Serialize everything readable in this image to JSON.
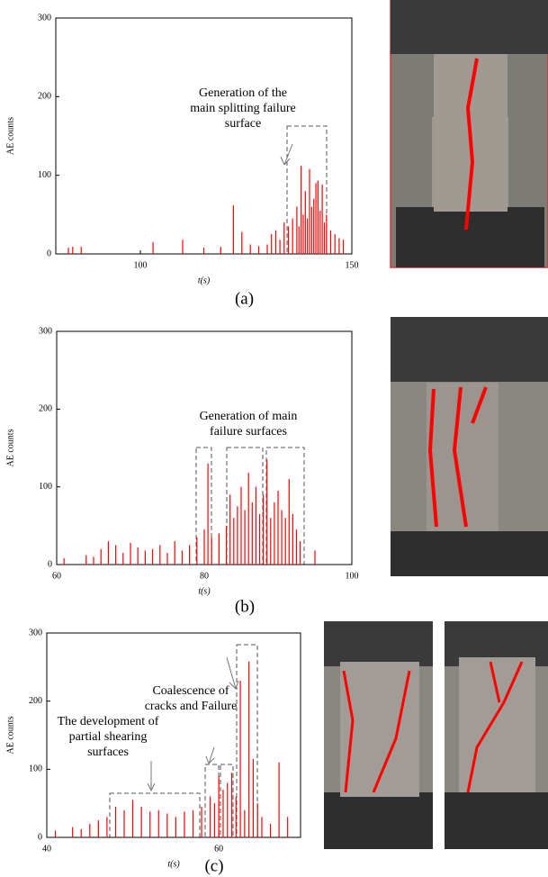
{
  "chart_data": [
    {
      "type": "bar",
      "panel": "(a)",
      "ylabel": "AE counts",
      "xlabel": "t(s)",
      "color": "#ff0000",
      "xlim": [
        80,
        150
      ],
      "xticks": [
        100,
        150
      ],
      "ylim": [
        0,
        300
      ],
      "yticks": [
        0,
        100,
        200,
        300
      ],
      "annotations": [
        [
          "Generation of the",
          "main splitting failure",
          "surface"
        ]
      ],
      "x": [
        83,
        84,
        86,
        103,
        110,
        115,
        119,
        122,
        124,
        126,
        128,
        130,
        131,
        132,
        133,
        134,
        135,
        136,
        137,
        137.5,
        138,
        138.5,
        139,
        139.5,
        140,
        140.5,
        141,
        141.5,
        142,
        142.5,
        143,
        143.5,
        144,
        145,
        146,
        147,
        148
      ],
      "values": [
        8,
        9,
        9,
        15,
        18,
        8,
        9,
        62,
        28,
        12,
        10,
        12,
        25,
        30,
        18,
        40,
        35,
        45,
        60,
        35,
        112,
        50,
        80,
        45,
        108,
        60,
        70,
        90,
        93,
        55,
        88,
        40,
        50,
        30,
        25,
        20,
        18
      ]
    },
    {
      "type": "bar",
      "panel": "(b)",
      "ylabel": "AE counts",
      "xlabel": "t(s)",
      "color": "#ff0000",
      "xlim": [
        60,
        100
      ],
      "xticks": [
        60,
        80,
        100
      ],
      "ylim": [
        0,
        300
      ],
      "yticks": [
        0,
        100,
        200,
        300
      ],
      "annotations": [
        [
          "Generation of main",
          "failure surfaces"
        ]
      ],
      "x": [
        61,
        64,
        65,
        66,
        67,
        68,
        69,
        70,
        71,
        72,
        73,
        74,
        75,
        76,
        77,
        78,
        79,
        80,
        80.5,
        81,
        82,
        83,
        83.5,
        84,
        84.5,
        85,
        85.5,
        86,
        86.5,
        87,
        87.5,
        88,
        88.5,
        89,
        89.5,
        90,
        90.5,
        91,
        91.5,
        92,
        92.5,
        93,
        95
      ],
      "values": [
        8,
        12,
        10,
        20,
        30,
        25,
        15,
        28,
        22,
        18,
        20,
        25,
        15,
        30,
        18,
        25,
        35,
        45,
        130,
        35,
        40,
        50,
        90,
        60,
        75,
        100,
        70,
        118,
        80,
        100,
        65,
        90,
        135,
        60,
        80,
        95,
        70,
        60,
        110,
        65,
        45,
        30,
        18
      ]
    },
    {
      "type": "bar",
      "panel": "(c)",
      "ylabel": "AE counts",
      "xlabel": "t(s)",
      "color": "#ff0000",
      "xlim": [
        40,
        69.5
      ],
      "xticks": [
        40,
        60
      ],
      "ylim": [
        0,
        300
      ],
      "yticks": [
        0,
        100,
        200,
        300
      ],
      "annotations": [
        [
          "Coalescence of",
          "cracks and Failure"
        ],
        [
          "The  development of",
          "partial shearing",
          "surfaces"
        ]
      ],
      "x": [
        41,
        43,
        44,
        45,
        46,
        47,
        48,
        49,
        50,
        51,
        52,
        53,
        54,
        55,
        56,
        57,
        58,
        59,
        59.5,
        60,
        60.5,
        61,
        61.5,
        62,
        62.5,
        63,
        63.5,
        64,
        64.5,
        65,
        66,
        67,
        68
      ],
      "values": [
        10,
        15,
        12,
        20,
        25,
        30,
        45,
        40,
        55,
        45,
        38,
        40,
        35,
        30,
        38,
        40,
        45,
        60,
        50,
        90,
        70,
        80,
        95,
        60,
        230,
        40,
        258,
        115,
        50,
        30,
        20,
        110,
        30
      ]
    }
  ]
}
